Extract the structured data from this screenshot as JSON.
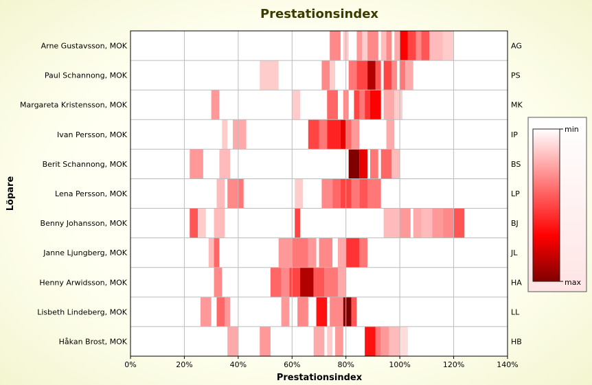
{
  "chart_data": {
    "type": "heatmap",
    "title": "Prestationsindex",
    "xlabel": "Prestationsindex",
    "ylabel": "Löpare",
    "xlim": [
      0,
      140
    ],
    "x_ticks": [
      "0%",
      "20%",
      "40%",
      "60%",
      "80%",
      "100%",
      "120%",
      "140%"
    ],
    "x_tick_values": [
      0,
      20,
      40,
      60,
      80,
      100,
      120,
      140
    ],
    "grid": true,
    "legend": {
      "position": "right",
      "min_label": "min",
      "max_label": "max"
    },
    "colors": {
      "low": "#ffffff",
      "mid": "#ff0000",
      "high": "#800000",
      "border": "#cc8080"
    },
    "rows": [
      {
        "name": "Arne Gustavsson, MOK",
        "code": "AG",
        "bands": [
          [
            74,
            78,
            0.35
          ],
          [
            79,
            81,
            0.15
          ],
          [
            84,
            86,
            0.3
          ],
          [
            86,
            88,
            0.15
          ],
          [
            88,
            92,
            0.35
          ],
          [
            93,
            95,
            0.2
          ],
          [
            95,
            97,
            0.35
          ],
          [
            98,
            100,
            0.25
          ],
          [
            100,
            103,
            0.75
          ],
          [
            103,
            106,
            0.55
          ],
          [
            106,
            108,
            0.35
          ],
          [
            108,
            111,
            0.5
          ],
          [
            111,
            116,
            0.2
          ],
          [
            116,
            120,
            0.15
          ]
        ]
      },
      {
        "name": "Paul Schannong, MOK",
        "code": "PS",
        "bands": [
          [
            48,
            55,
            0.15
          ],
          [
            71,
            74,
            0.35
          ],
          [
            74,
            76,
            0.15
          ],
          [
            81,
            84,
            0.4
          ],
          [
            84,
            88,
            0.55
          ],
          [
            88,
            91,
            0.9
          ],
          [
            91,
            93,
            0.5
          ],
          [
            94,
            97,
            0.55
          ],
          [
            97,
            99,
            0.35
          ],
          [
            100,
            102,
            0.4
          ],
          [
            102,
            105,
            0.25
          ]
        ]
      },
      {
        "name": "Margareta Kristensson, MOK",
        "code": "MK",
        "bands": [
          [
            30,
            33,
            0.3
          ],
          [
            60,
            63,
            0.15
          ],
          [
            73,
            77,
            0.45
          ],
          [
            79,
            81,
            0.35
          ],
          [
            83,
            85,
            0.55
          ],
          [
            85,
            87,
            0.4
          ],
          [
            87,
            89,
            0.6
          ],
          [
            89,
            93,
            0.75
          ],
          [
            94,
            98,
            0.25
          ],
          [
            98,
            101,
            0.15
          ]
        ]
      },
      {
        "name": "Ivan Persson, MOK",
        "code": "IP",
        "bands": [
          [
            34,
            36,
            0.15
          ],
          [
            38,
            43,
            0.25
          ],
          [
            66,
            70,
            0.55
          ],
          [
            70,
            73,
            0.4
          ],
          [
            73,
            78,
            0.65
          ],
          [
            78,
            80,
            0.8
          ],
          [
            80,
            82,
            0.45
          ],
          [
            82,
            85,
            0.3
          ],
          [
            95,
            98,
            0.25
          ]
        ]
      },
      {
        "name": "Berit Schannong, MOK",
        "code": "BS",
        "bands": [
          [
            22,
            27,
            0.3
          ],
          [
            33,
            37,
            0.2
          ],
          [
            81,
            85,
            1.0
          ],
          [
            85,
            88,
            0.8
          ],
          [
            89,
            92,
            0.4
          ],
          [
            93,
            97,
            0.45
          ],
          [
            97,
            100,
            0.2
          ]
        ]
      },
      {
        "name": "Lena Persson, MOK",
        "code": "LP",
        "bands": [
          [
            32,
            35,
            0.2
          ],
          [
            36,
            40,
            0.35
          ],
          [
            40,
            42,
            0.4
          ],
          [
            61,
            64,
            0.15
          ],
          [
            71,
            75,
            0.35
          ],
          [
            75,
            78,
            0.45
          ],
          [
            78,
            82,
            0.55
          ],
          [
            82,
            85,
            0.4
          ],
          [
            85,
            88,
            0.5
          ],
          [
            88,
            93,
            0.4
          ]
        ]
      },
      {
        "name": "Benny Johansson, MOK",
        "code": "BJ",
        "bands": [
          [
            22,
            25,
            0.5
          ],
          [
            25,
            28,
            0.15
          ],
          [
            31,
            35,
            0.2
          ],
          [
            61,
            63,
            0.55
          ],
          [
            94,
            100,
            0.2
          ],
          [
            100,
            104,
            0.3
          ],
          [
            105,
            108,
            0.25
          ],
          [
            108,
            112,
            0.2
          ],
          [
            112,
            116,
            0.3
          ],
          [
            116,
            120,
            0.35
          ],
          [
            120,
            124,
            0.5
          ]
        ]
      },
      {
        "name": "Janne Ljungberg, MOK",
        "code": "JL",
        "bands": [
          [
            29,
            31,
            0.2
          ],
          [
            31,
            33,
            0.45
          ],
          [
            55,
            60,
            0.3
          ],
          [
            60,
            66,
            0.4
          ],
          [
            66,
            69,
            0.3
          ],
          [
            70,
            75,
            0.35
          ],
          [
            77,
            80,
            0.25
          ],
          [
            80,
            85,
            0.6
          ],
          [
            85,
            88,
            0.4
          ]
        ]
      },
      {
        "name": "Henny Arwidsson, MOK",
        "code": "HA",
        "bands": [
          [
            31,
            34,
            0.35
          ],
          [
            52,
            56,
            0.45
          ],
          [
            56,
            59,
            0.35
          ],
          [
            59,
            63,
            0.55
          ],
          [
            63,
            68,
            0.9
          ],
          [
            68,
            72,
            0.5
          ],
          [
            72,
            77,
            0.4
          ],
          [
            77,
            80,
            0.25
          ]
        ]
      },
      {
        "name": "Lisbeth Lindeberg, MOK",
        "code": "LL",
        "bands": [
          [
            26,
            30,
            0.3
          ],
          [
            32,
            35,
            0.45
          ],
          [
            35,
            37,
            0.3
          ],
          [
            56,
            59,
            0.3
          ],
          [
            62,
            66,
            0.35
          ],
          [
            69,
            73,
            0.7
          ],
          [
            74,
            79,
            0.35
          ],
          [
            79,
            82,
            1.0
          ],
          [
            82,
            84,
            0.5
          ]
        ]
      },
      {
        "name": "Håkan Brost, MOK",
        "code": "HB",
        "bands": [
          [
            36,
            40,
            0.25
          ],
          [
            48,
            52,
            0.3
          ],
          [
            68,
            72,
            0.25
          ],
          [
            73,
            75,
            0.15
          ],
          [
            76,
            79,
            0.3
          ],
          [
            87,
            91,
            0.7
          ],
          [
            91,
            93,
            0.4
          ],
          [
            93,
            96,
            0.3
          ],
          [
            96,
            100,
            0.2
          ],
          [
            100,
            103,
            0.1
          ]
        ]
      }
    ]
  }
}
